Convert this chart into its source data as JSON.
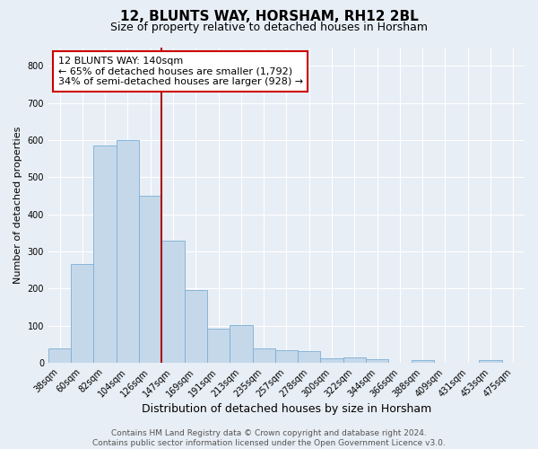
{
  "title": "12, BLUNTS WAY, HORSHAM, RH12 2BL",
  "subtitle": "Size of property relative to detached houses in Horsham",
  "xlabel": "Distribution of detached houses by size in Horsham",
  "ylabel": "Number of detached properties",
  "categories": [
    "38sqm",
    "60sqm",
    "82sqm",
    "104sqm",
    "126sqm",
    "147sqm",
    "169sqm",
    "191sqm",
    "213sqm",
    "235sqm",
    "257sqm",
    "278sqm",
    "300sqm",
    "322sqm",
    "344sqm",
    "366sqm",
    "388sqm",
    "409sqm",
    "431sqm",
    "453sqm",
    "475sqm"
  ],
  "values": [
    38,
    265,
    585,
    600,
    450,
    328,
    195,
    92,
    102,
    38,
    35,
    32,
    13,
    15,
    10,
    0,
    8,
    0,
    0,
    8,
    0
  ],
  "bar_color": "#c5d8ea",
  "bar_edge_color": "#7bafd4",
  "vline_x": 4.5,
  "vline_color": "#aa1111",
  "annotation_line1": "12 BLUNTS WAY: 140sqm",
  "annotation_line2": "← 65% of detached houses are smaller (1,792)",
  "annotation_line3": "34% of semi-detached houses are larger (928) →",
  "annotation_box_facecolor": "#ffffff",
  "annotation_box_edgecolor": "#cc0000",
  "ylim": [
    0,
    850
  ],
  "yticks": [
    0,
    100,
    200,
    300,
    400,
    500,
    600,
    700,
    800
  ],
  "bg_color": "#e8eef5",
  "grid_color": "#ffffff",
  "footer_line1": "Contains HM Land Registry data © Crown copyright and database right 2024.",
  "footer_line2": "Contains public sector information licensed under the Open Government Licence v3.0.",
  "title_fontsize": 11,
  "subtitle_fontsize": 9,
  "xlabel_fontsize": 9,
  "ylabel_fontsize": 8,
  "tick_fontsize": 7,
  "annotation_fontsize": 8,
  "footer_fontsize": 6.5
}
